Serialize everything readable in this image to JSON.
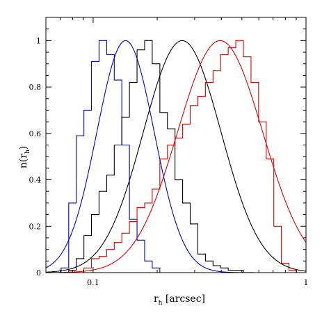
{
  "chart_data": {
    "type": "line",
    "xlabel": {
      "main": "r",
      "sub": "h",
      "rest": " [arcsec]"
    },
    "ylabel": {
      "main": "n(r",
      "sub": "h",
      "rest": ")"
    },
    "xscale": "log",
    "xlim": [
      0.06,
      1.0
    ],
    "ylim": [
      0,
      1.1
    ],
    "x_ticks": [
      0.1,
      1
    ],
    "x_tick_labels": [
      "0.1",
      "1"
    ],
    "y_ticks": [
      0,
      0.2,
      0.4,
      0.6,
      0.8,
      1
    ],
    "y_tick_labels": [
      "0",
      "0.2",
      "0.4",
      "0.6",
      "0.8",
      "1"
    ],
    "grid": false,
    "legend": "none",
    "histogram_bin_edges": [
      0.06,
      0.0651,
      0.0707,
      0.0768,
      0.0833,
      0.0905,
      0.0982,
      0.1066,
      0.1158,
      0.1257,
      0.1364,
      0.1481,
      0.1608,
      0.1746,
      0.1895,
      0.2058,
      0.2234,
      0.2425,
      0.2633,
      0.2858,
      0.3103,
      0.3369,
      0.3658,
      0.3971,
      0.4311,
      0.468,
      0.5081,
      0.5516,
      0.5989,
      0.6502,
      0.7059,
      0.7663,
      0.8319,
      0.9032,
      0.9806
    ],
    "histograms": [
      {
        "color": "#0000cc",
        "counts": [
          0,
          0,
          0.02,
          0.3,
          0.59,
          0.7,
          0.91,
          1.0,
          0.94,
          0.83,
          0.55,
          0.23,
          0.14,
          0.05,
          0.02,
          0,
          0,
          0,
          0,
          0,
          0,
          0,
          0,
          0,
          0,
          0,
          0,
          0,
          0,
          0,
          0,
          0,
          0,
          0
        ]
      },
      {
        "color": "#000000",
        "counts": [
          0,
          0,
          0,
          0.01,
          0.06,
          0.16,
          0.25,
          0.35,
          0.42,
          0.55,
          0.67,
          0.82,
          0.96,
          1.0,
          0.9,
          0.69,
          0.62,
          0.4,
          0.3,
          0.21,
          0.08,
          0.05,
          0.03,
          0.02,
          0.01,
          0.01,
          0,
          0,
          0,
          0,
          0,
          0,
          0,
          0
        ]
      },
      {
        "color": "#dd0000",
        "counts": [
          0,
          0,
          0,
          0,
          0,
          0.02,
          0.06,
          0.07,
          0.1,
          0.13,
          0.17,
          0.22,
          0.28,
          0.3,
          0.36,
          0.49,
          0.55,
          0.58,
          0.64,
          0.72,
          0.76,
          0.82,
          0.87,
          0.94,
          0.97,
          1.0,
          0.93,
          0.82,
          0.65,
          0.49,
          0.2,
          0.04,
          0.01,
          0
        ]
      }
    ],
    "series": [
      {
        "color": "#0000cc",
        "fit": "lognormal",
        "peak_x": 0.142,
        "width_sigma_ln": 0.31,
        "peak_y": 1.0
      },
      {
        "color": "#000000",
        "fit": "lognormal",
        "peak_x": 0.262,
        "width_sigma_ln": 0.42,
        "peak_y": 1.0
      },
      {
        "color": "#dd0000",
        "fit": "lognormal",
        "peak_x": 0.395,
        "width_sigma_ln": 0.46,
        "peak_y": 1.0
      }
    ]
  }
}
